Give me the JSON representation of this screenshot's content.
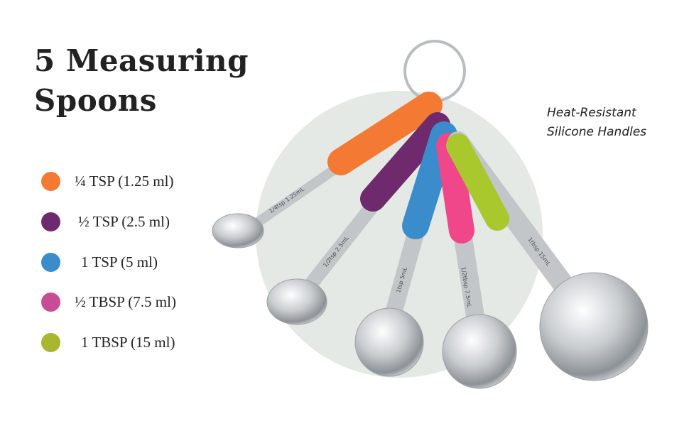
{
  "title": {
    "line1": "5 Measuring",
    "line2": "Spoons"
  },
  "legend": [
    {
      "label": "¼ TSP (1.25 ml)",
      "color": "#f47a33"
    },
    {
      "label": "½ TSP (2.5 ml)",
      "color": "#6e2a6c"
    },
    {
      "label": "1 TSP (5 ml)",
      "color": "#3a8cca"
    },
    {
      "label": "½ TBSP (7.5 ml)",
      "color": "#c84b95"
    },
    {
      "label": "1 TBSP (15 ml)",
      "color": "#a8b72e"
    }
  ],
  "feature": {
    "line1": "Heat-Resistant",
    "line2": "Silicone Handles"
  },
  "background_circle_color": "#e4e9e5",
  "spoon_engravings": [
    "1/4tsp 1.25mL",
    "1/2tsp 2.5mL",
    "1tsp 5mL",
    "1/2tbsp 7.5mL",
    "1tbsp 15mL"
  ]
}
